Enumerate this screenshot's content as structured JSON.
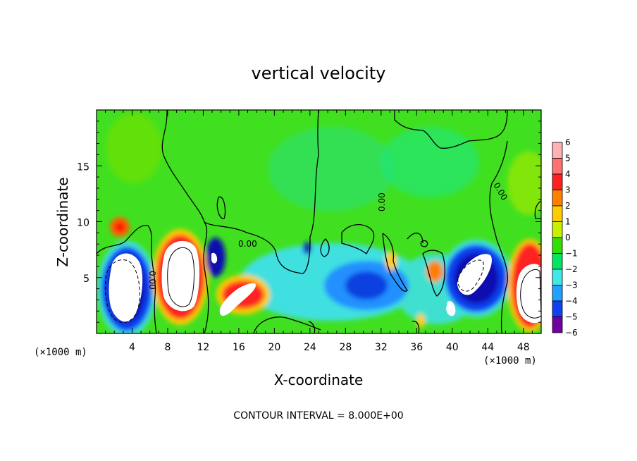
{
  "chart_data": {
    "type": "heatmap",
    "title": "vertical velocity",
    "xlabel": "X-coordinate",
    "ylabel": "Z-coordinate",
    "x_unit": "(×1000 m)",
    "y_unit": "(×1000 m)",
    "xlim": [
      0,
      50
    ],
    "ylim": [
      0,
      20
    ],
    "x_ticks": [
      4,
      8,
      12,
      16,
      20,
      24,
      28,
      32,
      36,
      40,
      44,
      48
    ],
    "y_ticks": [
      5,
      10,
      15
    ],
    "contour_interval_label": "CONTOUR INTERVAL = 8.000E+00",
    "contour_labels": [
      "0.00",
      "0.00",
      "0.00",
      "0.00"
    ],
    "colorbar": {
      "ticks": [
        "6",
        "5",
        "4",
        "3",
        "2",
        "1",
        "0",
        "−1",
        "−2",
        "−3",
        "−4",
        "−5",
        "−6"
      ],
      "colors": [
        "#ffb0b0",
        "#ff7070",
        "#ff2020",
        "#ff8000",
        "#ffcc00",
        "#c8f000",
        "#30e000",
        "#00e860",
        "#40e8e8",
        "#20a0ff",
        "#1040f0",
        "#1010b0",
        "#7000a0"
      ]
    },
    "features": [
      {
        "x": 3.3,
        "z": 4.0,
        "value": -8,
        "kind": "updraft-core negative"
      },
      {
        "x": 9.8,
        "z": 5.5,
        "value": 8,
        "kind": "positive core"
      },
      {
        "x": 13.8,
        "z": 6.5,
        "value": -5,
        "kind": "negative"
      },
      {
        "x": 17.0,
        "z": 3.5,
        "value": 6,
        "kind": "positive"
      },
      {
        "x": 30.5,
        "z": 4.5,
        "value": -3.5,
        "kind": "negative"
      },
      {
        "x": 43.0,
        "z": 5.5,
        "value": -8,
        "kind": "negative core"
      },
      {
        "x": 48.8,
        "z": 4.3,
        "value": 8,
        "kind": "positive core"
      }
    ]
  }
}
